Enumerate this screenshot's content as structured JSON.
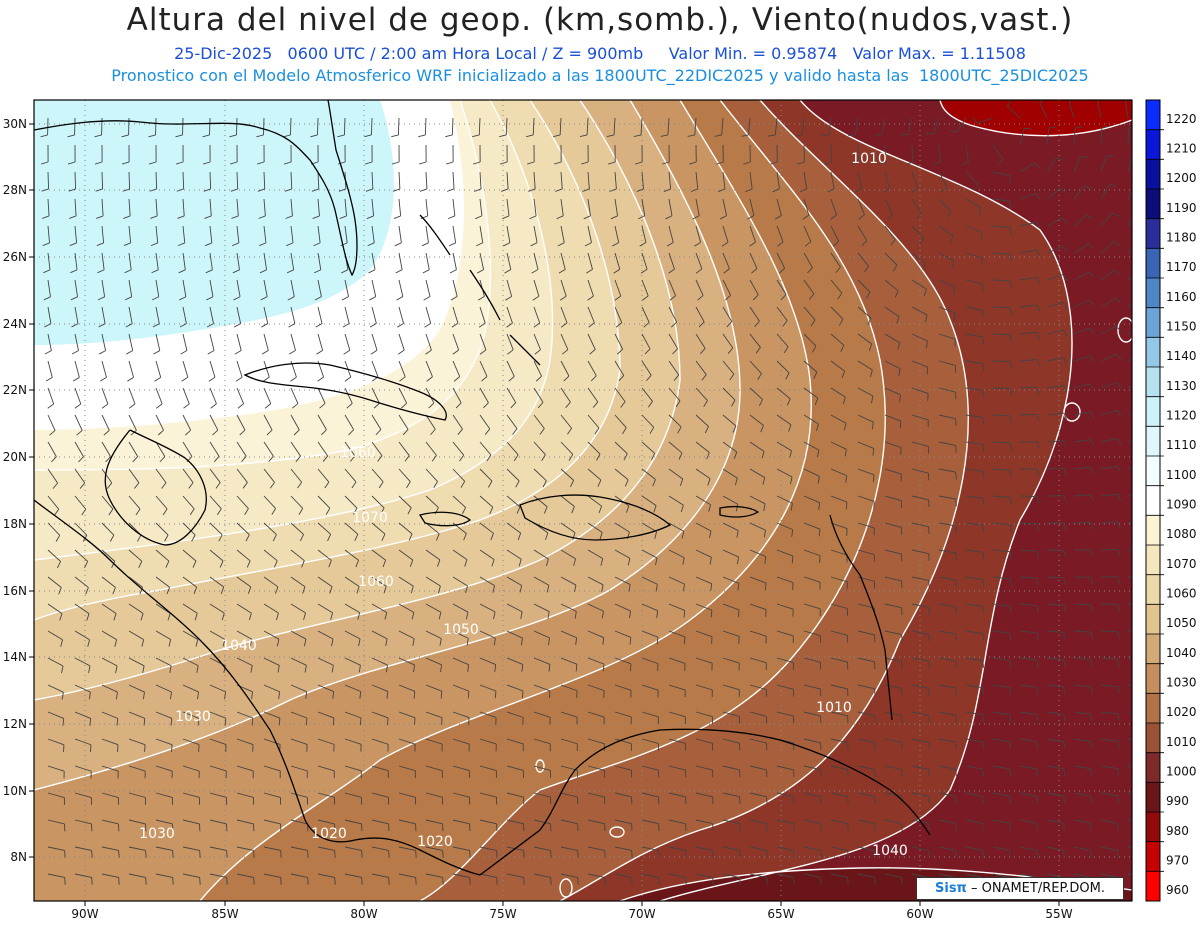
{
  "header": {
    "title": "Altura del nivel de geop. (km,somb.), Viento(nudos,vast.)",
    "line1": "25-Dic-2025   0600 UTC / 2:00 am Hora Local / Z = 900mb     Valor Min. = 0.95874   Valor Max. = 1.11508",
    "line2": "Pronostico con el Modelo Atmosferico WRF inicializado a las 1800UTC_22DIC2025 y valido hasta las  1800UTC_25DIC2025"
  },
  "map": {
    "lon_labels": [
      "90W",
      "85W",
      "80W",
      "75W",
      "70W",
      "65W",
      "60W",
      "55W"
    ],
    "lat_labels": [
      "30N",
      "28N",
      "26N",
      "24N",
      "22N",
      "20N",
      "18N",
      "16N",
      "14N",
      "12N",
      "10N",
      "8N"
    ],
    "contour_labels": [
      "1010",
      "1060",
      "1050",
      "1040",
      "1030",
      "1030",
      "1020",
      "1020",
      "1010",
      "1040",
      "1060",
      "1070"
    ],
    "colors": {
      "light_blue": "#cdf6fb",
      "white": "#ffffff",
      "pale_yellow": "#fbf3d2",
      "tan": "#e2c48f",
      "brown": "#b87a48",
      "dark_brown": "#8e3628",
      "maroon": "#7a1a24",
      "dark_red": "#a00000"
    }
  },
  "colorbar": {
    "labels": [
      "1220",
      "1210",
      "1200",
      "1190",
      "1180",
      "1170",
      "1160",
      "1150",
      "1140",
      "1130",
      "1120",
      "1110",
      "1100",
      "1090",
      "1080",
      "1070",
      "1060",
      "1050",
      "1040",
      "1030",
      "1020",
      "1010",
      "1000",
      "990",
      "980",
      "970",
      "960"
    ],
    "colors": [
      "#0a2cff",
      "#0a16d8",
      "#08119e",
      "#0b0e78",
      "#2a2e9a",
      "#3a64b4",
      "#4f86c6",
      "#6aa4d8",
      "#94c8e8",
      "#b6e2f0",
      "#cdf1f8",
      "#dff7fb",
      "#f2fdfe",
      "#ffffff",
      "#fbf3d2",
      "#f4e6bd",
      "#ecd8a8",
      "#e2c48f",
      "#d3a977",
      "#c48e5e",
      "#b07348",
      "#9a5136",
      "#7e2a2a",
      "#6a1518",
      "#930a0a",
      "#c40202",
      "#ff0000"
    ]
  },
  "credit": {
    "brand": "Sisπ",
    "text": " – ONAMET/REP.DOM."
  }
}
